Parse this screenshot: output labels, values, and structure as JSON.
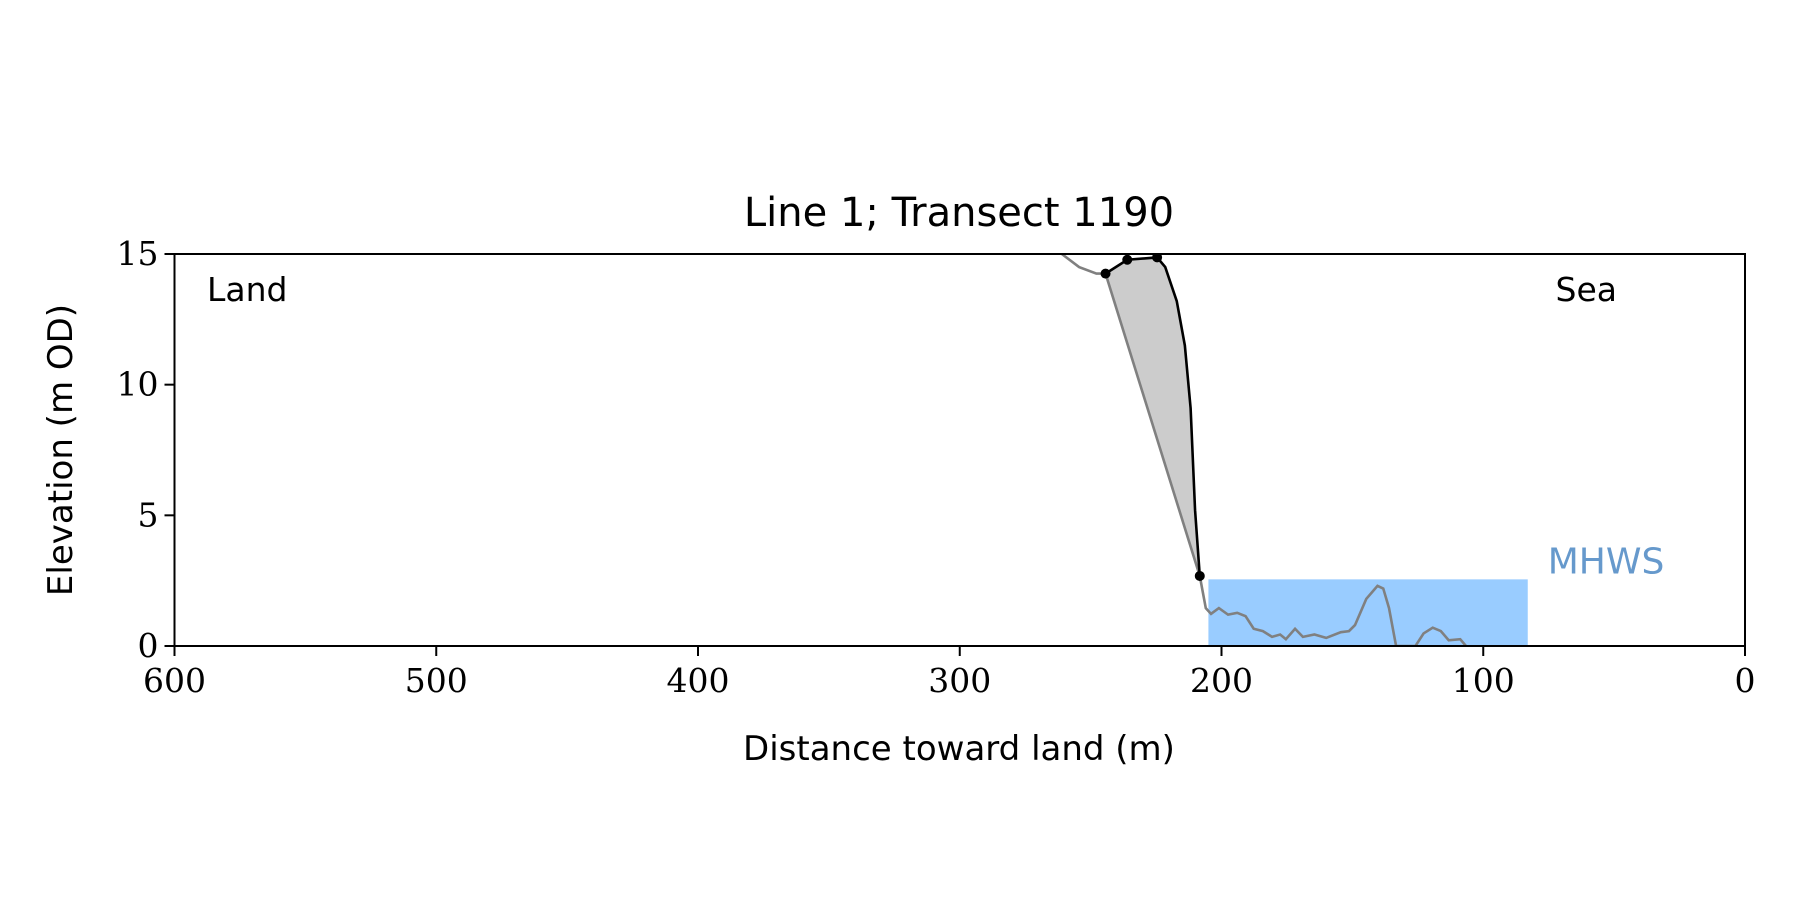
{
  "chart_data": {
    "type": "line",
    "title": "Line 1; Transect 1190",
    "xlabel": "Distance toward land (m)",
    "ylabel": "Elevation (m OD)",
    "xlim": [
      600,
      0
    ],
    "ylim": [
      0,
      15
    ],
    "xticks": [
      600,
      500,
      400,
      300,
      200,
      100,
      0
    ],
    "yticks": [
      0,
      5,
      10,
      15
    ],
    "annotations": [
      "Land",
      "Sea"
    ],
    "mhws": {
      "label": "MHWS",
      "value": 2.55,
      "x": [
        205,
        83
      ],
      "color": "#99ccff",
      "label_color": "#6699cc"
    },
    "fill_color": "#cccccc",
    "series": [
      {
        "color": "#808080",
        "markers": false,
        "x": [
          261,
          254.4,
          247.8,
          244.3,
          208.3,
          206,
          204,
          201,
          197.5,
          194,
          190.8,
          187.7,
          184.2,
          180.7,
          177.6,
          175.4,
          171.9,
          168.9,
          164.5,
          160,
          154.4,
          151.3,
          149,
          144.7,
          140.4,
          138.2,
          136,
          133.3,
          125.9,
          122.8,
          119.3,
          116.2,
          113.2,
          108.8,
          106.6
        ],
        "values": [
          15,
          14.5,
          14.25,
          14.25,
          2.68,
          1.45,
          1.23,
          1.45,
          1.2,
          1.27,
          1.14,
          0.66,
          0.57,
          0.35,
          0.44,
          0.26,
          0.66,
          0.35,
          0.44,
          0.31,
          0.53,
          0.57,
          0.8,
          1.8,
          2.3,
          2.2,
          1.45,
          0,
          0,
          0.48,
          0.7,
          0.57,
          0.22,
          0.26,
          0
        ]
      },
      {
        "color": "#000000",
        "markers": false,
        "fill": true,
        "x": [
          244.3,
          236,
          224.6,
          221.5,
          217.1,
          214,
          211.8,
          210.1,
          208.3
        ],
        "values": [
          14.25,
          14.78,
          14.87,
          14.5,
          13.2,
          11.5,
          9.1,
          5.2,
          2.68
        ]
      },
      {
        "color": "#000000",
        "markers": true,
        "line": false,
        "x": [
          244.3,
          236,
          224.6,
          208.3
        ],
        "values": [
          14.25,
          14.78,
          14.87,
          2.68
        ]
      }
    ]
  }
}
